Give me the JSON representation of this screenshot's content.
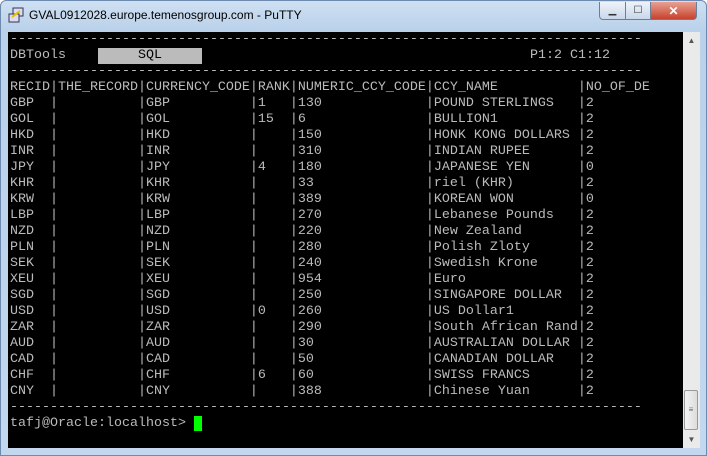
{
  "window": {
    "title": "GVAL0912028.europe.temenosgroup.com - PuTTY"
  },
  "terminal": {
    "app_name": "DBTools",
    "mode_label": "SQL",
    "position": "P1:2 C1:12",
    "columns": [
      "RECID",
      "THE_RECORD",
      "CURRENCY_CODE",
      "RANK",
      "NUMERIC_CCY_CODE",
      "CCY_NAME",
      "NO_OF_DE"
    ],
    "rows": [
      [
        "GBP",
        "",
        "GBP",
        "1",
        "130",
        "POUND STERLINGS",
        "2"
      ],
      [
        "GOL",
        "",
        "GOL",
        "15",
        "6",
        "BULLION1",
        "2"
      ],
      [
        "HKD",
        "",
        "HKD",
        "",
        "150",
        "HONK KONG DOLLARS",
        "2"
      ],
      [
        "INR",
        "",
        "INR",
        "",
        "310",
        "INDIAN RUPEE",
        "2"
      ],
      [
        "JPY",
        "",
        "JPY",
        "4",
        "180",
        "JAPANESE YEN",
        "0"
      ],
      [
        "KHR",
        "",
        "KHR",
        "",
        "33",
        "riel (KHR)",
        "2"
      ],
      [
        "KRW",
        "",
        "KRW",
        "",
        "389",
        "KOREAN WON",
        "0"
      ],
      [
        "LBP",
        "",
        "LBP",
        "",
        "270",
        "Lebanese Pounds",
        "2"
      ],
      [
        "NZD",
        "",
        "NZD",
        "",
        "220",
        "New Zealand",
        "2"
      ],
      [
        "PLN",
        "",
        "PLN",
        "",
        "280",
        "Polish Zloty",
        "2"
      ],
      [
        "SEK",
        "",
        "SEK",
        "",
        "240",
        "Swedish Krone",
        "2"
      ],
      [
        "XEU",
        "",
        "XEU",
        "",
        "954",
        "Euro",
        "2"
      ],
      [
        "SGD",
        "",
        "SGD",
        "",
        "250",
        "SINGAPORE DOLLAR",
        "2"
      ],
      [
        "USD",
        "",
        "USD",
        "0",
        "260",
        "US Dollar1",
        "2"
      ],
      [
        "ZAR",
        "",
        "ZAR",
        "",
        "290",
        "South African Rand",
        "2"
      ],
      [
        "AUD",
        "",
        "AUD",
        "",
        "30",
        "AUSTRALIAN DOLLAR",
        "2"
      ],
      [
        "CAD",
        "",
        "CAD",
        "",
        "50",
        "CANADIAN DOLLAR",
        "2"
      ],
      [
        "CHF",
        "",
        "CHF",
        "6",
        "60",
        "SWISS FRANCS",
        "2"
      ],
      [
        "CNY",
        "",
        "CNY",
        "",
        "388",
        "Chinese Yuan",
        "2"
      ]
    ],
    "prompt": "tafj@Oracle:localhost> ",
    "cursor_color": "#00ff00",
    "text_color": "#bbbbbb"
  }
}
